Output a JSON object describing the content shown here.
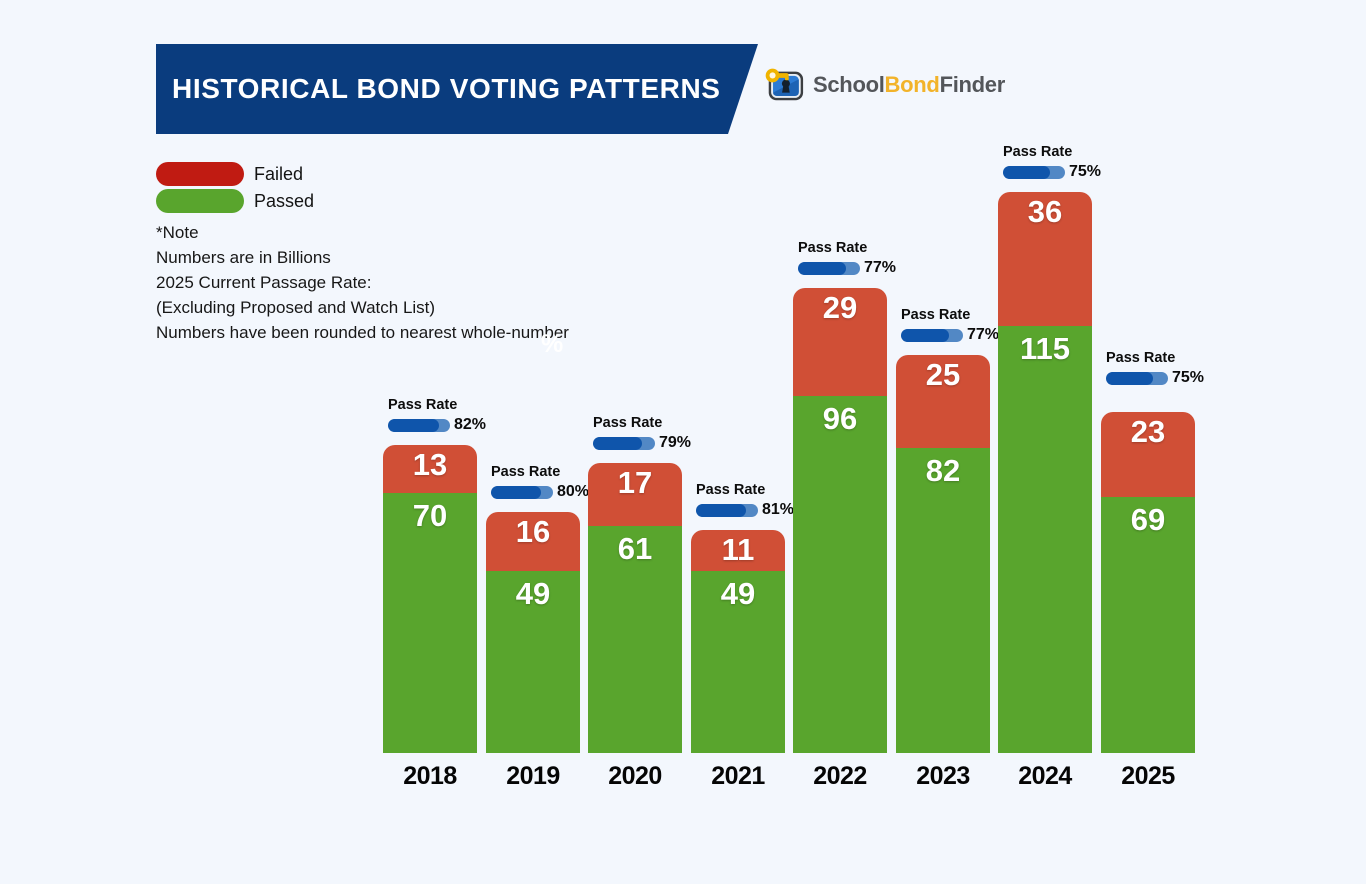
{
  "header": {
    "title": "HISTORICAL BOND VOTING PATTERNS"
  },
  "logo": {
    "school": "School",
    "bond": "Bond",
    "finder": "Finder"
  },
  "legend": {
    "items": [
      {
        "label": "Failed",
        "color": "#c01b12"
      },
      {
        "label": "Passed",
        "color": "#59a52d"
      }
    ]
  },
  "notes": {
    "line1": "*Note",
    "line2": "Numbers are in Billions",
    "line3": "2025 Current Passage Rate:",
    "line4": "(Excluding Proposed and Watch List)",
    "line5": "Numbers have been rounded to nearest whole-number"
  },
  "stray_percent": "%",
  "chart_data": {
    "type": "bar",
    "stacked": true,
    "title": "Historical Bond Voting Patterns",
    "value_unit": "Billions (rounded to nearest whole number)",
    "categories": [
      "2018",
      "2019",
      "2020",
      "2021",
      "2022",
      "2023",
      "2024",
      "2025"
    ],
    "series": [
      {
        "name": "Failed",
        "color": "#d04f36",
        "values": [
          13,
          16,
          17,
          11,
          29,
          25,
          36,
          23
        ]
      },
      {
        "name": "Passed",
        "color": "#59a52d",
        "values": [
          70,
          49,
          61,
          49,
          96,
          82,
          115,
          69
        ]
      }
    ],
    "pass_rate_label": "Pass Rate",
    "pass_rates_percent": [
      82,
      80,
      79,
      81,
      77,
      77,
      75,
      75
    ],
    "legend_position": "top-left",
    "grid": false,
    "axes": "no axis lines; year labels under each bar; values printed on segments"
  },
  "colors": {
    "background": "#f3f7fd",
    "banner": "#0a3c7e",
    "pill_fill": "#0f55ab",
    "pill_track": "#5288c5"
  }
}
